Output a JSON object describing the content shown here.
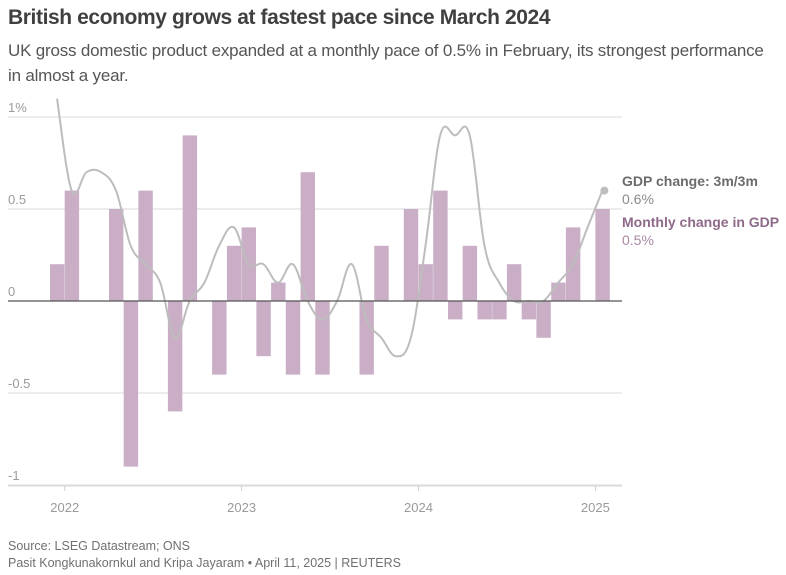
{
  "header": {
    "title": "British economy grows at fastest pace since March 2024",
    "subtitle": "UK gross domestic product expanded at a monthly pace of 0.5% in February, its strongest performance in almost a year."
  },
  "footer": {
    "source": "Source: LSEG Datastream; ONS",
    "credit": "Pasit Kongkunakornkul and Kripa Jayaram • April 11, 2025 | REUTERS"
  },
  "chart_data": {
    "type": "bar",
    "title": "British economy grows at fastest pace since March 2024",
    "xlabel": "",
    "ylabel": "",
    "ylim": [
      -1.0,
      1.1
    ],
    "grid": true,
    "y_ticks": [
      {
        "value": 1,
        "label": "1%"
      },
      {
        "value": 0.5,
        "label": "0.5"
      },
      {
        "value": 0,
        "label": "0"
      },
      {
        "value": -0.5,
        "label": "-0.5"
      },
      {
        "value": -1,
        "label": "-1"
      }
    ],
    "x_ticks": [
      {
        "month_index": 1,
        "label": "2022"
      },
      {
        "month_index": 13,
        "label": "2023"
      },
      {
        "month_index": 25,
        "label": "2024"
      },
      {
        "month_index": 37,
        "label": "2025"
      }
    ],
    "colors": {
      "bar": "#c9aec6",
      "line": "#bdbdbd",
      "zero_line": "#555555",
      "grid": "#d9d9d9"
    },
    "series": [
      {
        "name": "Monthly change in GDP",
        "type": "bar",
        "last_value_label": "0.5%",
        "values": [
          0.2,
          0.6,
          0.0,
          0.0,
          0.5,
          -0.9,
          0.6,
          0.0,
          -0.6,
          0.9,
          0.0,
          -0.4,
          0.3,
          0.4,
          -0.3,
          0.1,
          -0.4,
          0.7,
          -0.4,
          0.0,
          0.0,
          -0.4,
          0.3,
          0.0,
          0.5,
          0.2,
          0.6,
          -0.1,
          0.3,
          -0.1,
          -0.1,
          0.2,
          -0.1,
          -0.2,
          0.1,
          0.4,
          0.0,
          0.5
        ]
      },
      {
        "name": "GDP change: 3m/3m",
        "type": "line",
        "last_value_label": "0.6%",
        "values": [
          1.1,
          0.6,
          0.7,
          0.7,
          0.6,
          0.3,
          0.2,
          0.1,
          -0.2,
          0.0,
          0.1,
          0.3,
          0.4,
          0.2,
          0.2,
          0.1,
          0.2,
          0.0,
          -0.1,
          0.0,
          0.2,
          -0.1,
          -0.2,
          -0.3,
          -0.2,
          0.3,
          0.9,
          0.9,
          0.9,
          0.3,
          0.1,
          0.0,
          0.0,
          0.0,
          0.1,
          0.2,
          0.4,
          0.6
        ]
      }
    ],
    "legend": "right"
  }
}
